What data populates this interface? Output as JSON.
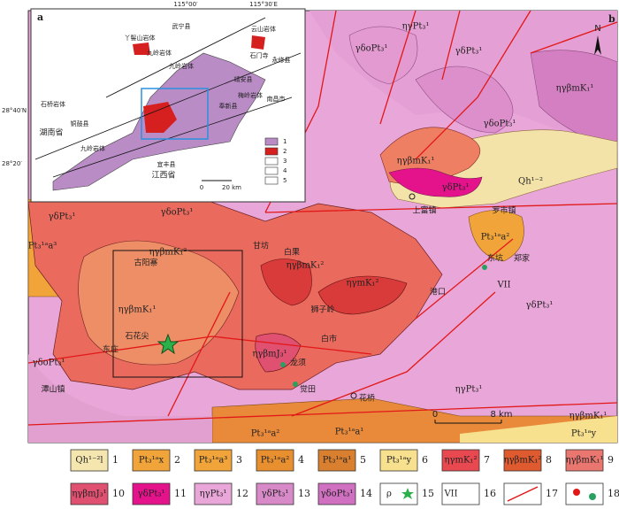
{
  "coordinates": {
    "top": [
      "115°00′",
      "115°30′E"
    ],
    "left": [
      "28°40′N",
      "28°20′"
    ]
  },
  "inset": {
    "label": "a",
    "scale": [
      "0",
      "20 km"
    ],
    "legend": [
      "1",
      "2",
      "3",
      "4",
      "5"
    ],
    "places": [
      "武宁县",
      "云山岩体",
      "九岭岩体",
      "丫髻山岩体",
      "石门寺",
      "永修县",
      "靖安县",
      "九岭岩体",
      "梅岭岩体",
      "湖南省",
      "石桥岩体",
      "铜鼓县",
      "九岭岩体",
      "奉新县",
      "南昌市",
      "宜丰县",
      "江西省"
    ]
  },
  "map": {
    "label": "b",
    "north": "N",
    "scale": [
      "0",
      "8 km"
    ],
    "places": [
      "ηγPt₃¹",
      "γδoPt₃¹",
      "γδPt₃¹",
      "ηγβmK₁¹",
      "γδoPt₃¹",
      "ηγβmK₁¹",
      "γδPt₃¹",
      "Qh¹⁻²",
      "上富镇",
      "罗市镇",
      "Pt₃¹ᵃa²",
      "东坑",
      "郑家",
      "港口",
      "VII",
      "ηγPt₃¹",
      "γδoPt₃¹",
      "ηγβmK₁²",
      "甘坊",
      "白果",
      "ηγβmK₁²",
      "ηγmK₁²",
      "古阳寨",
      "ηγβmK₁¹",
      "石花尖",
      "东庄",
      "狮子岭",
      "ηγβmJ₃¹",
      "白市",
      "龙须",
      "觉田",
      "花桥",
      "潭山镇",
      "γδPt₃¹",
      "γδoPt₃¹",
      "Pt₃¹ᵃa²",
      "Pt₃¹ᵃa¹",
      "Pt₃¹ᵃy",
      "ηγβmK₁¹",
      "Pt₃¹ᵃa³",
      "γδPt₃¹"
    ]
  },
  "legend": [
    {
      "number": "1",
      "label": "Qh¹⁻²l"
    },
    {
      "number": "2",
      "label": "Pt₃¹ᵃx"
    },
    {
      "number": "3",
      "label": "Pt₃¹ᵃa³"
    },
    {
      "number": "4",
      "label": "Pt₃¹ᵃa²"
    },
    {
      "number": "5",
      "label": "Pt₃¹ᵃa¹"
    },
    {
      "number": "6",
      "label": "Pt₃¹ᵃy"
    },
    {
      "number": "7",
      "label": "ηγmK₁²"
    },
    {
      "number": "8",
      "label": "ηγβmK₁²"
    },
    {
      "number": "9",
      "label": "ηγβmK₁¹"
    },
    {
      "number": "10",
      "label": "ηγβmJ₃¹"
    },
    {
      "number": "11",
      "label": "γδPt₃¹"
    },
    {
      "number": "12",
      "label": "ηγPt₃¹"
    },
    {
      "number": "13",
      "label": "γδPt₃¹"
    },
    {
      "number": "14",
      "label": "γδoPt₃¹"
    },
    {
      "number": "15",
      "label": "ρ"
    },
    {
      "number": "16",
      "label": "VII"
    },
    {
      "number": "17",
      "label": ""
    },
    {
      "number": "18",
      "label": ""
    }
  ]
}
